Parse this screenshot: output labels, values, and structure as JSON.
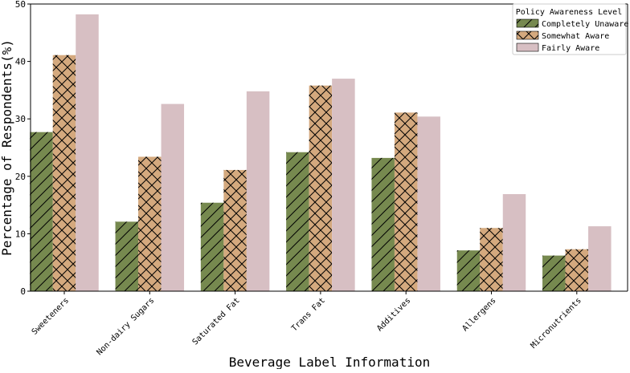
{
  "chart_data": {
    "type": "bar",
    "title": "",
    "xlabel": "Beverage Label Information",
    "ylabel": "Percentage of Respondents(%)",
    "ylim": [
      0,
      50
    ],
    "yticks": [
      0,
      10,
      20,
      30,
      40,
      50
    ],
    "categories": [
      "Sweeteners",
      "Non-dairy Sugars",
      "Saturated Fat",
      "Trans Fat",
      "Additives",
      "Allergens",
      "Micronutrients"
    ],
    "series": [
      {
        "name": "Completely Unaware",
        "color": "#76894f",
        "hatch": "diagonal",
        "values": [
          27.7,
          12.1,
          15.4,
          24.2,
          23.2,
          7.1,
          6.2
        ]
      },
      {
        "name": "Somewhat Aware",
        "color": "#d4a97e",
        "hatch": "crosshatch",
        "values": [
          41.1,
          23.4,
          21.1,
          35.8,
          31.1,
          11.0,
          7.3
        ]
      },
      {
        "name": "Fairly Aware",
        "color": "#d7bfc3",
        "hatch": "none",
        "values": [
          48.2,
          32.6,
          34.8,
          37.0,
          30.4,
          16.9,
          11.3
        ]
      }
    ],
    "legend": {
      "title": "Policy Awareness Level",
      "position": "top-right"
    },
    "grid": false
  }
}
